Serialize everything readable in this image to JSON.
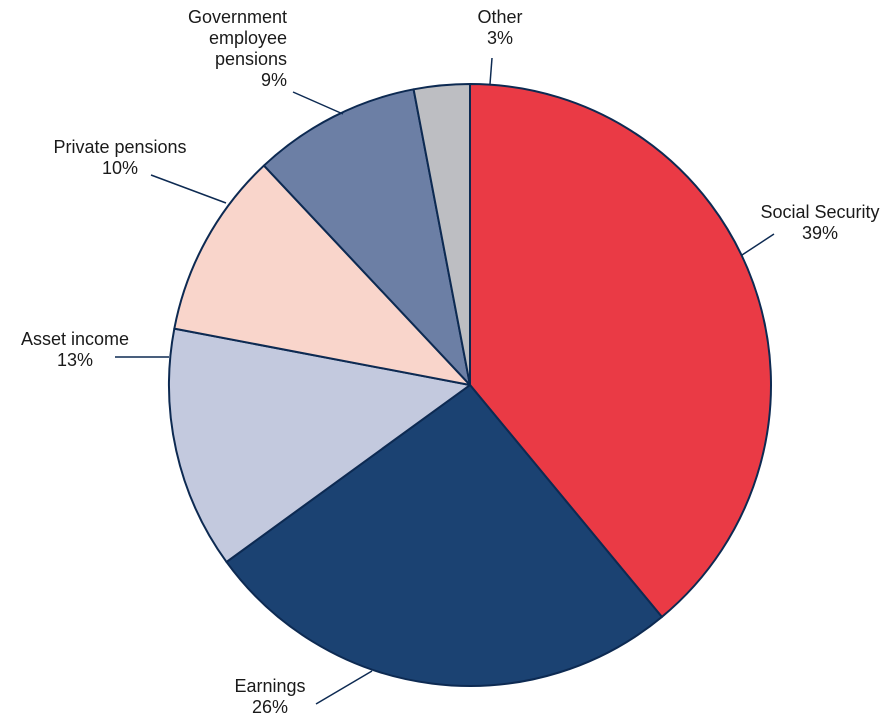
{
  "chart_data": {
    "type": "pie",
    "slices": [
      {
        "label": "Social Security",
        "value": 39,
        "display": "39%",
        "color": "#ea3a45"
      },
      {
        "label": "Earnings",
        "value": 26,
        "display": "26%",
        "color": "#1b4272"
      },
      {
        "label": "Asset income",
        "value": 13,
        "display": "13%",
        "color": "#c3c9de"
      },
      {
        "label": "Private pensions",
        "value": 10,
        "display": "10%",
        "color": "#f9d5cb"
      },
      {
        "label": "Government employee pensions",
        "value": 9,
        "display": "9%",
        "color": "#6c7fa5"
      },
      {
        "label": "Other",
        "value": 3,
        "display": "3%",
        "color": "#bdbec2"
      }
    ],
    "start_angle_deg": 0,
    "direction": "clockwise",
    "outline_color": "#0d2a52"
  }
}
